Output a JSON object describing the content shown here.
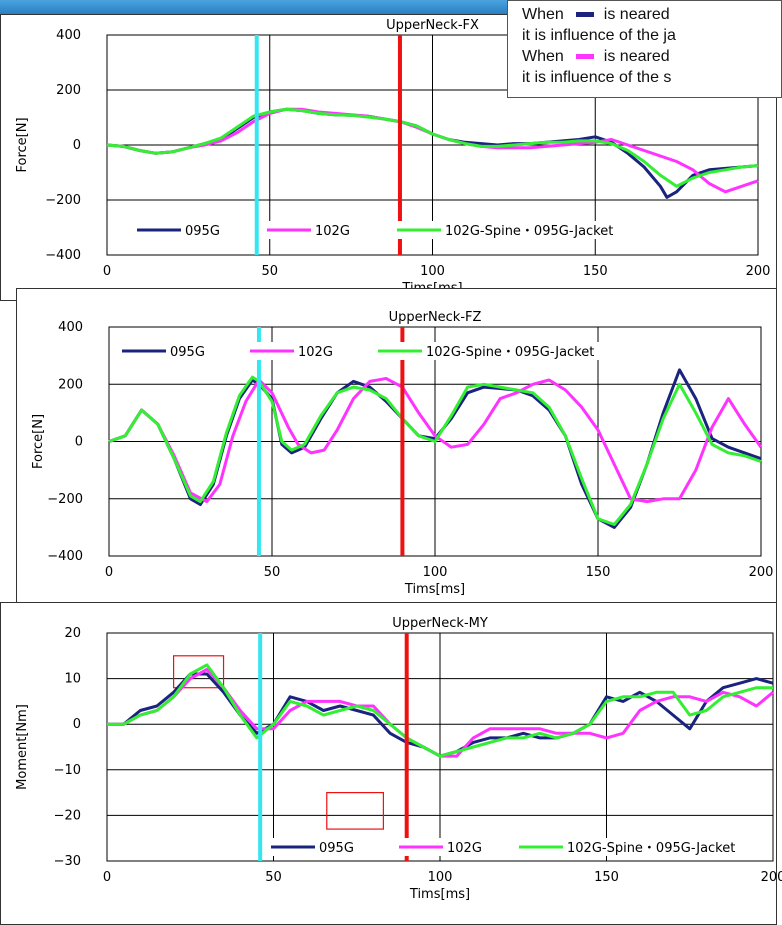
{
  "note": {
    "line1_prefix": "When",
    "line1_suffix": "is neared",
    "line2": "it is influence of the ja",
    "line3_prefix": "When",
    "line3_suffix": "is neared",
    "line4": "it is influence of the s",
    "swatch1_color": "#1a237e",
    "swatch2_color": "#ff33ff"
  },
  "colors": {
    "s095G": "#1a237e",
    "s102G": "#ff33ff",
    "s102GSpine": "#33ee33",
    "cyan_line": "#33e6f0",
    "red_line": "#ee1111",
    "box": "#ee1111"
  },
  "chart_data": [
    {
      "type": "line",
      "title": "UpperNeck-FX",
      "xlabel": "Tims[ms]",
      "ylabel": "Force[N]",
      "xlim": [
        0,
        200
      ],
      "ylim": [
        -400,
        400
      ],
      "xticks": [
        "0",
        "50",
        "100",
        "150",
        "200"
      ],
      "yticks": [
        "400",
        "200",
        "0",
        "−200",
        "−400"
      ],
      "grid": true,
      "legend": "bottom",
      "vlines": [
        {
          "x": 46,
          "color": "cyan"
        },
        {
          "x": 90,
          "color": "red"
        }
      ],
      "series": [
        {
          "name": "095G",
          "x": [
            0,
            5,
            10,
            15,
            20,
            25,
            30,
            35,
            40,
            45,
            50,
            55,
            60,
            65,
            70,
            75,
            80,
            85,
            90,
            95,
            100,
            105,
            110,
            115,
            120,
            125,
            130,
            135,
            140,
            145,
            150,
            155,
            160,
            165,
            170,
            172,
            175,
            180,
            185,
            190,
            195,
            200
          ],
          "y": [
            0,
            -5,
            -20,
            -30,
            -25,
            -10,
            5,
            20,
            60,
            100,
            120,
            130,
            125,
            115,
            110,
            108,
            105,
            95,
            85,
            70,
            40,
            20,
            10,
            5,
            0,
            5,
            5,
            10,
            15,
            20,
            30,
            10,
            -30,
            -80,
            -150,
            -190,
            -170,
            -110,
            -90,
            -85,
            -80,
            -75
          ]
        },
        {
          "name": "102G",
          "x": [
            0,
            5,
            10,
            15,
            20,
            25,
            30,
            35,
            40,
            45,
            50,
            55,
            60,
            65,
            70,
            75,
            80,
            85,
            90,
            95,
            100,
            105,
            110,
            115,
            120,
            125,
            130,
            135,
            140,
            145,
            150,
            155,
            160,
            165,
            170,
            175,
            180,
            185,
            190,
            195,
            200
          ],
          "y": [
            0,
            -5,
            -20,
            -30,
            -25,
            -10,
            0,
            15,
            45,
            85,
            115,
            130,
            130,
            120,
            115,
            110,
            105,
            95,
            85,
            65,
            40,
            20,
            5,
            -5,
            -10,
            -10,
            -10,
            -5,
            0,
            5,
            10,
            20,
            0,
            -20,
            -40,
            -60,
            -90,
            -140,
            -170,
            -150,
            -130
          ]
        },
        {
          "name": "102G-Spine・095G-Jacket",
          "x": [
            0,
            5,
            10,
            15,
            20,
            25,
            30,
            35,
            40,
            45,
            50,
            55,
            60,
            65,
            70,
            75,
            80,
            85,
            90,
            95,
            100,
            105,
            110,
            115,
            120,
            125,
            130,
            135,
            140,
            145,
            150,
            155,
            160,
            165,
            170,
            175,
            180,
            185,
            190,
            195,
            200
          ],
          "y": [
            0,
            -5,
            -20,
            -30,
            -25,
            -10,
            5,
            25,
            65,
            105,
            120,
            130,
            125,
            115,
            110,
            108,
            102,
            95,
            85,
            70,
            40,
            20,
            5,
            -5,
            -5,
            0,
            5,
            10,
            10,
            15,
            15,
            5,
            -20,
            -60,
            -110,
            -150,
            -120,
            -100,
            -90,
            -80,
            -75
          ]
        }
      ]
    },
    {
      "type": "line",
      "title": "UpperNeck-FZ",
      "xlabel": "Tims[ms]",
      "ylabel": "Force[N]",
      "xlim": [
        0,
        200
      ],
      "ylim": [
        -400,
        400
      ],
      "xticks": [
        "0",
        "50",
        "100",
        "150",
        "200"
      ],
      "yticks": [
        "400",
        "200",
        "0",
        "−200",
        "−400"
      ],
      "grid": true,
      "legend": "top",
      "vlines": [
        {
          "x": 46,
          "color": "cyan"
        },
        {
          "x": 90,
          "color": "red"
        }
      ],
      "series": [
        {
          "name": "095G",
          "x": [
            0,
            5,
            10,
            15,
            20,
            25,
            28,
            32,
            36,
            40,
            44,
            46,
            50,
            53,
            56,
            60,
            65,
            70,
            75,
            80,
            85,
            90,
            95,
            100,
            105,
            110,
            115,
            120,
            125,
            130,
            135,
            140,
            145,
            150,
            155,
            160,
            165,
            170,
            175,
            180,
            185,
            190,
            195,
            200
          ],
          "y": [
            0,
            20,
            110,
            60,
            -60,
            -200,
            -220,
            -150,
            20,
            150,
            215,
            200,
            150,
            -10,
            -40,
            -20,
            80,
            170,
            210,
            190,
            140,
            80,
            20,
            10,
            80,
            170,
            190,
            185,
            180,
            160,
            110,
            20,
            -150,
            -270,
            -300,
            -230,
            -80,
            100,
            250,
            150,
            10,
            -20,
            -40,
            -60
          ]
        },
        {
          "name": "102G",
          "x": [
            0,
            5,
            10,
            15,
            20,
            25,
            30,
            34,
            38,
            42,
            46,
            50,
            55,
            58,
            62,
            66,
            70,
            75,
            80,
            85,
            90,
            95,
            100,
            105,
            110,
            115,
            120,
            125,
            130,
            135,
            140,
            145,
            150,
            155,
            160,
            165,
            170,
            175,
            180,
            185,
            190,
            195,
            200
          ],
          "y": [
            0,
            20,
            110,
            60,
            -50,
            -180,
            -210,
            -150,
            20,
            140,
            215,
            170,
            50,
            -10,
            -40,
            -30,
            40,
            150,
            210,
            220,
            190,
            100,
            20,
            -20,
            -10,
            60,
            150,
            170,
            200,
            215,
            180,
            120,
            40,
            -80,
            -200,
            -210,
            -200,
            -200,
            -100,
            50,
            150,
            60,
            -20
          ]
        },
        {
          "name": "102G-Spine・095G-Jacket",
          "x": [
            0,
            5,
            10,
            15,
            20,
            25,
            28,
            32,
            36,
            40,
            44,
            46,
            50,
            53,
            56,
            60,
            65,
            70,
            75,
            80,
            85,
            90,
            95,
            100,
            105,
            110,
            115,
            120,
            125,
            130,
            135,
            140,
            145,
            150,
            155,
            160,
            165,
            170,
            175,
            180,
            185,
            190,
            195,
            200
          ],
          "y": [
            0,
            20,
            110,
            60,
            -60,
            -190,
            -210,
            -140,
            30,
            160,
            225,
            210,
            140,
            0,
            -30,
            -10,
            90,
            170,
            190,
            180,
            150,
            80,
            20,
            0,
            90,
            190,
            200,
            190,
            180,
            170,
            120,
            20,
            -130,
            -270,
            -290,
            -220,
            -80,
            80,
            200,
            100,
            -10,
            -40,
            -50,
            -70
          ]
        }
      ]
    },
    {
      "type": "line",
      "title": "UpperNeck-MY",
      "xlabel": "Tims[ms]",
      "ylabel": "Moment[Nm]",
      "xlim": [
        0,
        200
      ],
      "ylim": [
        -30,
        20
      ],
      "xticks": [
        "0",
        "50",
        "100",
        "150",
        "200"
      ],
      "yticks": [
        "20",
        "10",
        "0",
        "−10",
        "−20",
        "−30"
      ],
      "grid": true,
      "legend": "bottom-right",
      "vlines": [
        {
          "x": 46,
          "color": "cyan"
        },
        {
          "x": 90,
          "color": "red"
        }
      ],
      "boxes": [
        {
          "x0": 20,
          "x1": 35,
          "y0": 8,
          "y1": 15
        },
        {
          "x0": 66,
          "x1": 83,
          "y0": -23,
          "y1": -15
        }
      ],
      "series": [
        {
          "name": "095G",
          "x": [
            0,
            5,
            10,
            15,
            20,
            25,
            30,
            35,
            40,
            45,
            50,
            55,
            60,
            65,
            70,
            75,
            80,
            85,
            90,
            95,
            100,
            105,
            110,
            115,
            120,
            125,
            130,
            135,
            140,
            145,
            150,
            155,
            160,
            165,
            170,
            175,
            180,
            185,
            190,
            195,
            200
          ],
          "y": [
            0,
            0,
            3,
            4,
            7,
            11,
            11,
            7,
            2,
            -2,
            0,
            6,
            5,
            3,
            4,
            3,
            2,
            -2,
            -4,
            -5,
            -7,
            -6,
            -4,
            -3,
            -3,
            -2,
            -3,
            -3,
            -2,
            0,
            6,
            5,
            7,
            5,
            2,
            -1,
            5,
            8,
            9,
            10,
            9
          ]
        },
        {
          "name": "102G",
          "x": [
            0,
            5,
            10,
            15,
            20,
            25,
            30,
            35,
            40,
            45,
            50,
            55,
            60,
            65,
            70,
            75,
            80,
            85,
            90,
            95,
            100,
            105,
            110,
            115,
            120,
            125,
            130,
            135,
            140,
            145,
            150,
            155,
            160,
            165,
            170,
            175,
            180,
            185,
            190,
            195,
            200
          ],
          "y": [
            0,
            0,
            2,
            3,
            6,
            10,
            12,
            8,
            3,
            -1,
            -1,
            3,
            5,
            5,
            5,
            4,
            4,
            0,
            -3,
            -5,
            -7,
            -7,
            -3,
            -1,
            -1,
            -1,
            -1,
            -2,
            -2,
            -2,
            -3,
            -2,
            3,
            5,
            6,
            6,
            5,
            7,
            6,
            4,
            7
          ]
        },
        {
          "name": "102G-Spine・095G-Jacket",
          "x": [
            0,
            5,
            10,
            15,
            20,
            25,
            30,
            35,
            40,
            45,
            50,
            55,
            60,
            65,
            70,
            75,
            80,
            85,
            90,
            95,
            100,
            105,
            110,
            115,
            120,
            125,
            130,
            135,
            140,
            145,
            150,
            155,
            160,
            165,
            170,
            175,
            180,
            185,
            190,
            195,
            200
          ],
          "y": [
            0,
            0,
            2,
            3,
            6,
            11,
            13,
            8,
            2,
            -3,
            0,
            5,
            4,
            2,
            3,
            4,
            3,
            0,
            -3,
            -5,
            -7,
            -6,
            -5,
            -4,
            -3,
            -3,
            -2,
            -3,
            -2,
            0,
            5,
            6,
            6,
            7,
            7,
            2,
            3,
            6,
            7,
            8,
            8
          ]
        }
      ]
    }
  ]
}
